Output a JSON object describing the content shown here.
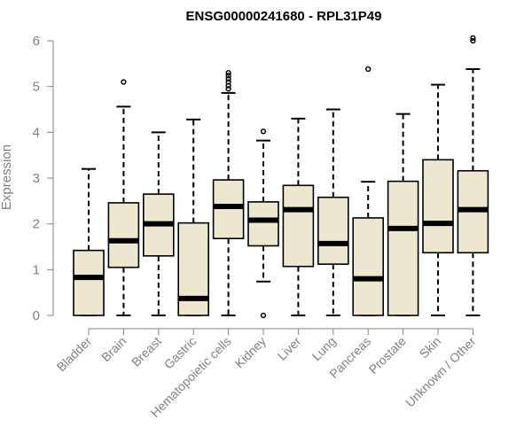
{
  "chart_data": {
    "type": "boxplot",
    "title": "ENSG00000241680 - RPL31P49",
    "xlabel": "",
    "ylabel": "Expression",
    "ylim": [
      0,
      6
    ],
    "yticks": [
      "0",
      "1",
      "2",
      "3",
      "4",
      "5",
      "6"
    ],
    "categories": [
      "Bladder",
      "Brain",
      "Breast",
      "Gastric",
      "Hematopoietic cells",
      "Kidney",
      "Liver",
      "Lung",
      "Pancreas",
      "Prostate",
      "Skin",
      "Unknown / Other"
    ],
    "boxes": [
      {
        "min": 0.0,
        "q1": 0.0,
        "median": 0.83,
        "q3": 1.42,
        "max": 3.2,
        "outliers": []
      },
      {
        "min": 0.0,
        "q1": 1.05,
        "median": 1.63,
        "q3": 2.46,
        "max": 4.56,
        "outliers": [
          5.1
        ]
      },
      {
        "min": 0.0,
        "q1": 1.3,
        "median": 2.0,
        "q3": 2.65,
        "max": 4.0,
        "outliers": []
      },
      {
        "min": 0.0,
        "q1": 0.0,
        "median": 0.37,
        "q3": 2.02,
        "max": 4.28,
        "outliers": []
      },
      {
        "min": 0.0,
        "q1": 1.68,
        "median": 2.38,
        "q3": 2.96,
        "max": 4.86,
        "outliers": [
          4.95,
          5.02,
          5.1,
          5.17,
          5.24,
          5.3
        ]
      },
      {
        "min": 0.74,
        "q1": 1.52,
        "median": 2.08,
        "q3": 2.48,
        "max": 3.82,
        "outliers": [
          4.02,
          0.0
        ]
      },
      {
        "min": 0.0,
        "q1": 1.07,
        "median": 2.31,
        "q3": 2.84,
        "max": 4.3,
        "outliers": []
      },
      {
        "min": 0.0,
        "q1": 1.12,
        "median": 1.57,
        "q3": 2.58,
        "max": 4.5,
        "outliers": []
      },
      {
        "min": 0.0,
        "q1": 0.0,
        "median": 0.8,
        "q3": 2.13,
        "max": 2.92,
        "outliers": [
          5.38
        ]
      },
      {
        "min": 0.0,
        "q1": 0.0,
        "median": 1.9,
        "q3": 2.93,
        "max": 4.4,
        "outliers": []
      },
      {
        "min": 0.0,
        "q1": 1.37,
        "median": 2.01,
        "q3": 3.4,
        "max": 5.04,
        "outliers": []
      },
      {
        "min": 0.0,
        "q1": 1.37,
        "median": 2.31,
        "q3": 3.16,
        "max": 5.38,
        "outliers": [
          6.0,
          6.06
        ]
      }
    ],
    "box_color": "#ede7cf"
  }
}
